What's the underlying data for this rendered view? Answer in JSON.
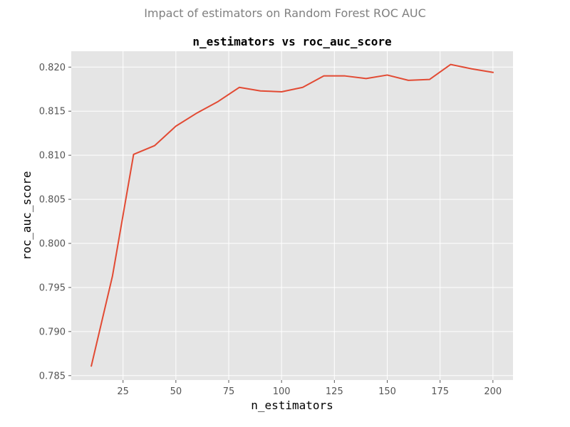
{
  "figure": {
    "suptitle": "Impact of estimators on Random Forest ROC AUC"
  },
  "chart_data": {
    "type": "line",
    "title": "n_estimators vs roc_auc_score",
    "xlabel": "n_estimators",
    "ylabel": "roc_auc_score",
    "xlim": [
      0.5,
      209.5
    ],
    "ylim": [
      0.7845,
      0.8218
    ],
    "grid": true,
    "legend": "none",
    "x_ticks": [
      25,
      50,
      75,
      100,
      125,
      150,
      175,
      200
    ],
    "x_tick_labels": [
      "25",
      "50",
      "75",
      "100",
      "125",
      "150",
      "175",
      "200"
    ],
    "y_ticks": [
      0.785,
      0.79,
      0.795,
      0.8,
      0.805,
      0.81,
      0.815,
      0.82
    ],
    "y_tick_labels": [
      "0.785",
      "0.790",
      "0.795",
      "0.800",
      "0.805",
      "0.810",
      "0.815",
      "0.820"
    ],
    "colors": {
      "line": "#e24a33",
      "axes_background": "#e5e5e5",
      "grid": "#ffffff"
    },
    "series": [
      {
        "x": [
          10,
          20,
          30,
          40,
          50,
          60,
          70,
          80,
          90,
          100,
          110,
          120,
          130,
          140,
          150,
          160,
          170,
          180,
          190,
          200
        ],
        "values": [
          0.7861,
          0.7963,
          0.8101,
          0.8111,
          0.8133,
          0.8148,
          0.8161,
          0.8177,
          0.8173,
          0.8172,
          0.8177,
          0.819,
          0.819,
          0.8187,
          0.8191,
          0.8185,
          0.8186,
          0.8203,
          0.8198,
          0.8194
        ]
      }
    ]
  }
}
